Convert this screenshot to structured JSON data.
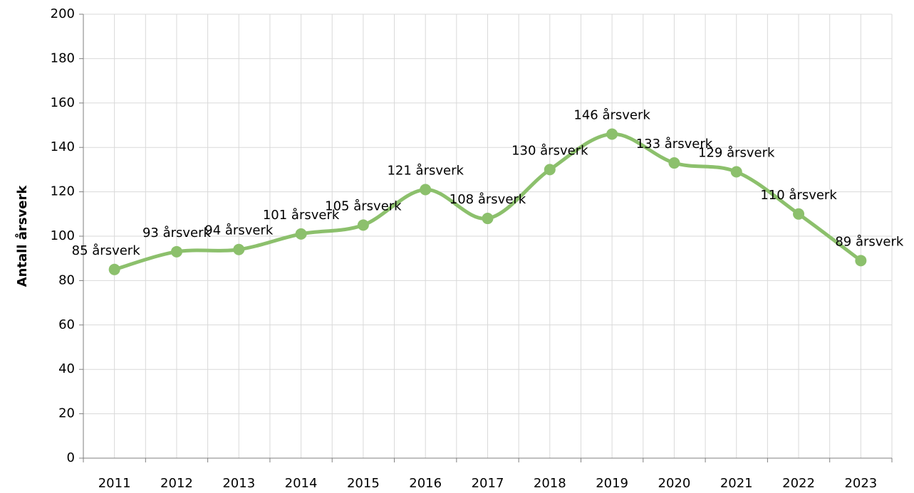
{
  "chart_data": {
    "type": "line",
    "y_label": "Antall årsverk",
    "categories": [
      "2011",
      "2012",
      "2013",
      "2014",
      "2015",
      "2016",
      "2017",
      "2018",
      "2019",
      "2020",
      "2021",
      "2022",
      "2023"
    ],
    "series": [
      {
        "name": "Antall årsverk",
        "color": "#8cc06c",
        "values": [
          85,
          93,
          94,
          101,
          105,
          121,
          108,
          130,
          146,
          133,
          129,
          110,
          89
        ],
        "value_labels": [
          "85 årsverk",
          "93 årsverk",
          "94 årsverk",
          "101 årsverk",
          "105 årsverk",
          "121 årsverk",
          "108 årsverk",
          "130 årsverk",
          "146 årsverk",
          "133 årsverk",
          "129 årsverk",
          "110 årsverk",
          "89 årsverk"
        ]
      }
    ],
    "ylim": [
      0,
      200
    ],
    "yticks": [
      0,
      20,
      40,
      60,
      80,
      100,
      120,
      140,
      160,
      180,
      200
    ],
    "grid": true,
    "smooth": true
  }
}
